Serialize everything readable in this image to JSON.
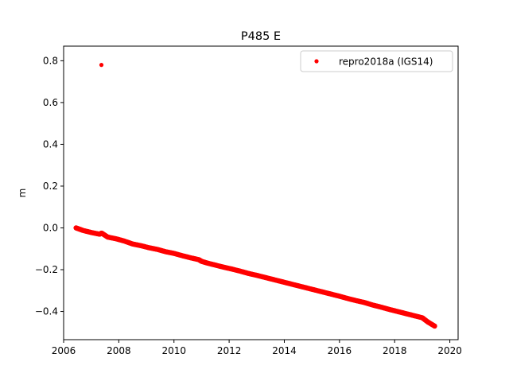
{
  "chart_data": {
    "type": "scatter",
    "title": "P485 E",
    "xlabel": "",
    "ylabel": "m",
    "xlim": [
      2006.0,
      2020.3
    ],
    "ylim": [
      -0.535,
      0.87
    ],
    "x_ticks": [
      2006,
      2008,
      2010,
      2012,
      2014,
      2016,
      2018,
      2020
    ],
    "x_tick_labels": [
      "2006",
      "2008",
      "2010",
      "2012",
      "2014",
      "2016",
      "2018",
      "2020"
    ],
    "y_ticks": [
      0.8,
      0.6,
      0.4,
      0.2,
      0.0,
      -0.2,
      -0.4
    ],
    "y_tick_labels": [
      "0.8",
      "0.6",
      "0.4",
      "0.2",
      "0.0",
      "−0.2",
      "−0.4"
    ],
    "grid": false,
    "legend_position": "top-right",
    "series": [
      {
        "name": "repro2018a (IGS14)",
        "color": "#ff0000",
        "marker": "dot",
        "x": [
          2006.45,
          2006.7,
          2007.0,
          2007.3,
          2007.38,
          2007.6,
          2007.9,
          2008.2,
          2008.5,
          2008.8,
          2009.1,
          2009.4,
          2009.7,
          2010.0,
          2010.3,
          2010.6,
          2010.9,
          2011.0,
          2011.2,
          2011.5,
          2011.8,
          2012.1,
          2012.4,
          2012.7,
          2013.0,
          2013.3,
          2013.6,
          2013.9,
          2014.2,
          2014.5,
          2014.8,
          2015.1,
          2015.4,
          2015.7,
          2016.0,
          2016.3,
          2016.6,
          2016.9,
          2017.2,
          2017.5,
          2017.8,
          2018.1,
          2018.4,
          2018.7,
          2019.0,
          2019.2,
          2019.45
        ],
        "y": [
          0.0,
          -0.012,
          -0.022,
          -0.03,
          -0.025,
          -0.044,
          -0.052,
          -0.063,
          -0.077,
          -0.085,
          -0.095,
          -0.103,
          -0.114,
          -0.122,
          -0.133,
          -0.143,
          -0.152,
          -0.16,
          -0.168,
          -0.178,
          -0.188,
          -0.197,
          -0.207,
          -0.218,
          -0.227,
          -0.237,
          -0.247,
          -0.257,
          -0.267,
          -0.277,
          -0.287,
          -0.297,
          -0.307,
          -0.317,
          -0.327,
          -0.338,
          -0.348,
          -0.357,
          -0.369,
          -0.379,
          -0.39,
          -0.4,
          -0.41,
          -0.42,
          -0.43,
          -0.45,
          -0.47
        ],
        "outliers": {
          "x": [
            2007.37
          ],
          "y": [
            0.78
          ]
        }
      }
    ]
  }
}
